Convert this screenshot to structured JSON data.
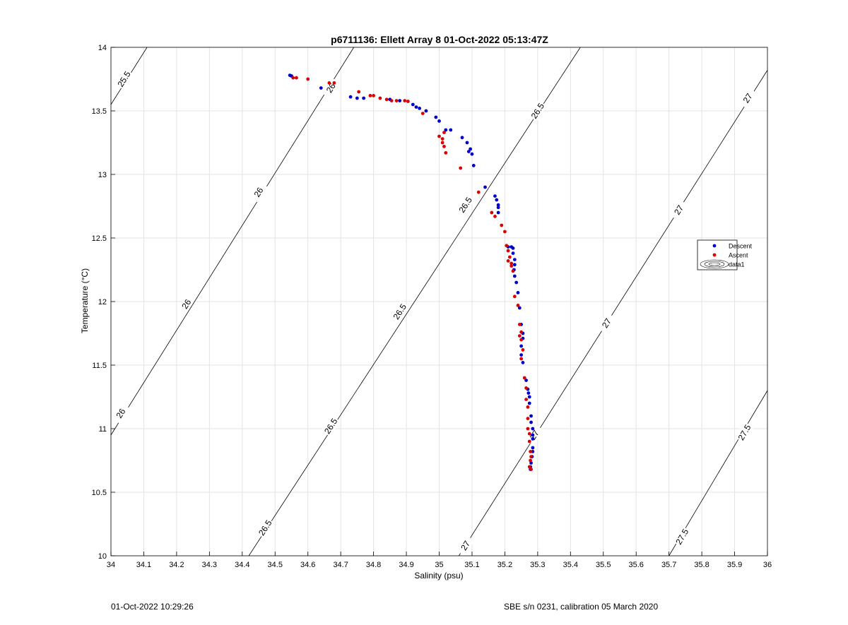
{
  "chart_data": {
    "type": "scatter",
    "title": "p6711136: Ellett Array 8 01-Oct-2022 05:13:47Z",
    "xlabel": "Salinity (psu)",
    "ylabel": "Temperature (°C)",
    "xlim": [
      34,
      36
    ],
    "ylim": [
      10,
      14
    ],
    "x_ticks": [
      "34",
      "34.1",
      "34.2",
      "34.3",
      "34.4",
      "34.5",
      "34.6",
      "34.7",
      "34.8",
      "34.9",
      "35",
      "35.1",
      "35.2",
      "35.3",
      "35.4",
      "35.5",
      "35.6",
      "35.7",
      "35.8",
      "35.9",
      "36"
    ],
    "y_ticks": [
      "10",
      "10.5",
      "11",
      "11.5",
      "12",
      "12.5",
      "13",
      "13.5",
      "14"
    ],
    "grid": true,
    "legend_position": "right",
    "legend": [
      {
        "name": "Descent",
        "color": "#0000cc",
        "marker": "dot"
      },
      {
        "name": "Ascent",
        "color": "#dd0000",
        "marker": "dot"
      },
      {
        "name": "data1",
        "color": "#000000",
        "marker": "contour"
      }
    ],
    "series": [
      {
        "name": "Descent",
        "color": "#0000cc",
        "points": [
          [
            34.545,
            13.78
          ],
          [
            34.55,
            13.775
          ],
          [
            34.64,
            13.68
          ],
          [
            34.73,
            13.61
          ],
          [
            34.75,
            13.6
          ],
          [
            34.77,
            13.6
          ],
          [
            34.85,
            13.59
          ],
          [
            34.88,
            13.58
          ],
          [
            34.92,
            13.55
          ],
          [
            34.93,
            13.53
          ],
          [
            34.94,
            13.52
          ],
          [
            34.96,
            13.5
          ],
          [
            34.99,
            13.45
          ],
          [
            35.0,
            13.42
          ],
          [
            35.02,
            13.35
          ],
          [
            35.035,
            13.35
          ],
          [
            35.07,
            13.29
          ],
          [
            35.085,
            13.25
          ],
          [
            35.095,
            13.2
          ],
          [
            35.09,
            13.18
          ],
          [
            35.1,
            13.16
          ],
          [
            35.105,
            13.07
          ],
          [
            35.14,
            12.9
          ],
          [
            35.17,
            12.83
          ],
          [
            35.175,
            12.8
          ],
          [
            35.18,
            12.76
          ],
          [
            35.18,
            12.74
          ],
          [
            35.18,
            12.7
          ],
          [
            35.21,
            12.43
          ],
          [
            35.22,
            12.43
          ],
          [
            35.225,
            12.42
          ],
          [
            35.225,
            12.38
          ],
          [
            35.23,
            12.33
          ],
          [
            35.23,
            12.29
          ],
          [
            35.228,
            12.25
          ],
          [
            35.23,
            12.2
          ],
          [
            35.235,
            12.15
          ],
          [
            35.24,
            12.07
          ],
          [
            35.245,
            11.95
          ],
          [
            35.25,
            11.82
          ],
          [
            35.255,
            11.75
          ],
          [
            35.255,
            11.71
          ],
          [
            35.25,
            11.65
          ],
          [
            35.25,
            11.58
          ],
          [
            35.255,
            11.52
          ],
          [
            35.265,
            11.38
          ],
          [
            35.27,
            11.31
          ],
          [
            35.272,
            11.28
          ],
          [
            35.275,
            11.25
          ],
          [
            35.275,
            11.2
          ],
          [
            35.28,
            11.1
          ],
          [
            35.28,
            11.05
          ],
          [
            35.285,
            11.0
          ],
          [
            35.285,
            10.95
          ],
          [
            35.285,
            10.92
          ],
          [
            35.285,
            10.85
          ],
          [
            35.285,
            10.82
          ],
          [
            35.283,
            10.78
          ],
          [
            35.28,
            10.73
          ],
          [
            35.278,
            10.7
          ],
          [
            35.278,
            10.68
          ]
        ]
      },
      {
        "name": "Ascent",
        "color": "#dd0000",
        "points": [
          [
            34.555,
            13.76
          ],
          [
            34.565,
            13.76
          ],
          [
            34.6,
            13.75
          ],
          [
            34.665,
            13.72
          ],
          [
            34.68,
            13.72
          ],
          [
            34.755,
            13.65
          ],
          [
            34.79,
            13.62
          ],
          [
            34.8,
            13.62
          ],
          [
            34.82,
            13.6
          ],
          [
            34.84,
            13.59
          ],
          [
            34.855,
            13.58
          ],
          [
            34.87,
            13.58
          ],
          [
            34.895,
            13.58
          ],
          [
            34.905,
            13.575
          ],
          [
            34.95,
            13.48
          ],
          [
            35.0,
            13.3
          ],
          [
            35.01,
            13.28
          ],
          [
            35.015,
            13.33
          ],
          [
            35.01,
            13.25
          ],
          [
            35.015,
            13.22
          ],
          [
            35.02,
            13.17
          ],
          [
            35.065,
            13.05
          ],
          [
            35.12,
            12.86
          ],
          [
            35.16,
            12.7
          ],
          [
            35.17,
            12.67
          ],
          [
            35.19,
            12.6
          ],
          [
            35.2,
            12.55
          ],
          [
            35.205,
            12.44
          ],
          [
            35.21,
            12.4
          ],
          [
            35.215,
            12.35
          ],
          [
            35.21,
            12.32
          ],
          [
            35.22,
            12.3
          ],
          [
            35.22,
            12.28
          ],
          [
            35.225,
            12.24
          ],
          [
            35.23,
            12.04
          ],
          [
            35.24,
            11.97
          ],
          [
            35.245,
            11.82
          ],
          [
            35.25,
            11.76
          ],
          [
            35.245,
            11.73
          ],
          [
            35.25,
            11.7
          ],
          [
            35.255,
            11.62
          ],
          [
            35.25,
            11.55
          ],
          [
            35.26,
            11.4
          ],
          [
            35.265,
            11.32
          ],
          [
            35.265,
            11.23
          ],
          [
            35.27,
            11.17
          ],
          [
            35.27,
            11.08
          ],
          [
            35.27,
            11.0
          ],
          [
            35.275,
            10.96
          ],
          [
            35.275,
            10.9
          ],
          [
            35.278,
            10.82
          ],
          [
            35.28,
            10.78
          ],
          [
            35.278,
            10.75
          ],
          [
            35.275,
            10.7
          ],
          [
            35.28,
            10.68
          ]
        ]
      }
    ],
    "isopycnals": [
      {
        "label": "25.5",
        "from": [
          34,
          13.55
        ],
        "to": [
          34.11,
          14
        ],
        "label_positions": [
          [
            34.04,
            13.75
          ]
        ]
      },
      {
        "label": "26",
        "from": [
          34,
          10.95
        ],
        "to": [
          34.74,
          14
        ],
        "label_positions": [
          [
            34.03,
            11.12
          ],
          [
            34.23,
            11.98
          ],
          [
            34.45,
            12.86
          ],
          [
            34.67,
            13.68
          ]
        ]
      },
      {
        "label": "26.5",
        "from": [
          34.42,
          10
        ],
        "to": [
          35.43,
          14
        ],
        "label_positions": [
          [
            34.47,
            10.22
          ],
          [
            34.67,
            11.02
          ],
          [
            34.88,
            11.92
          ],
          [
            35.08,
            12.76
          ],
          [
            35.3,
            13.5
          ]
        ]
      },
      {
        "label": "27",
        "from": [
          35.06,
          10
        ],
        "to": [
          36,
          13.82
        ],
        "label_positions": [
          [
            35.08,
            10.08
          ],
          [
            35.29,
            10.95
          ],
          [
            35.51,
            11.83
          ],
          [
            35.73,
            12.72
          ],
          [
            35.94,
            13.6
          ]
        ]
      },
      {
        "label": "27.5",
        "from": [
          35.7,
          10
        ],
        "to": [
          36,
          11.3
        ],
        "label_positions": [
          [
            35.74,
            10.15
          ],
          [
            35.93,
            10.97
          ]
        ]
      }
    ]
  },
  "footer": {
    "left": "01-Oct-2022 10:29:26",
    "right": "SBE s/n 0231, calibration 05 March 2020"
  }
}
